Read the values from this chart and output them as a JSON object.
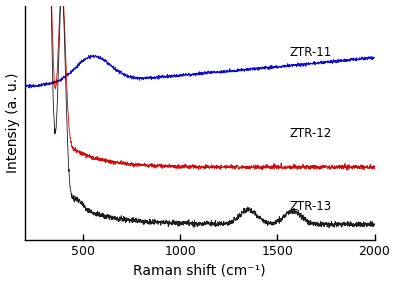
{
  "title": "",
  "xlabel": "Raman shift (cm⁻¹)",
  "ylabel": "Intensiy (a. u.)",
  "xmin": 200,
  "xmax": 2000,
  "xticks": [
    500,
    1000,
    1500,
    2000
  ],
  "colors": {
    "ZTR-11": "#0000cc",
    "ZTR-12": "#cc0000",
    "ZTR-13": "#111111"
  },
  "labels": {
    "ZTR-11": "ZTR-11",
    "ZTR-12": "ZTR-12",
    "ZTR-13": "ZTR-13"
  },
  "background_color": "#ffffff"
}
